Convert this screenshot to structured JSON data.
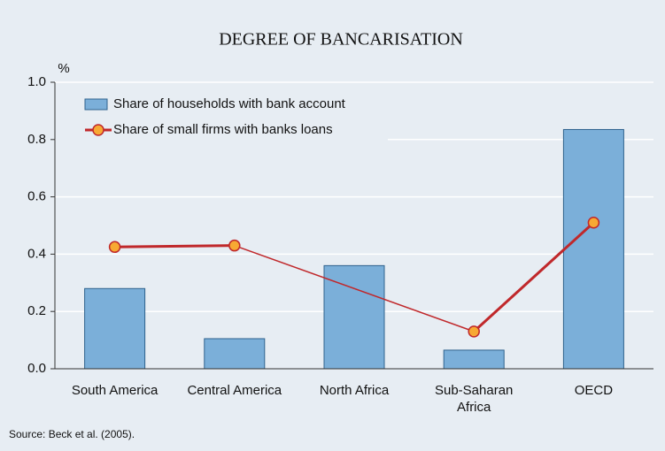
{
  "chart_data": {
    "type": "bar-line",
    "title": "DEGREE OF BANCARISATION",
    "y_label": "%",
    "categories": [
      "South America",
      "Central America",
      "North Africa",
      "Sub-Saharan Africa",
      "OECD"
    ],
    "series": [
      {
        "name": "Share of households with bank account",
        "type": "bar",
        "color": "#7bafd9",
        "values": [
          0.28,
          0.105,
          0.36,
          0.065,
          0.835
        ]
      },
      {
        "name": "Share of small firms with banks loans",
        "type": "line",
        "color": "#c0282b",
        "values": [
          0.425,
          0.43,
          null,
          0.13,
          0.51
        ]
      }
    ],
    "ylim": [
      0,
      1
    ],
    "yticks": [
      {
        "value": 0,
        "label": "0.0"
      },
      0.2,
      0.4,
      0.6,
      0.8,
      {
        "value": 1,
        "label": "1.0"
      }
    ],
    "grid": true,
    "legend": "top-left",
    "source": "Source: Beck et al. (2005)."
  }
}
